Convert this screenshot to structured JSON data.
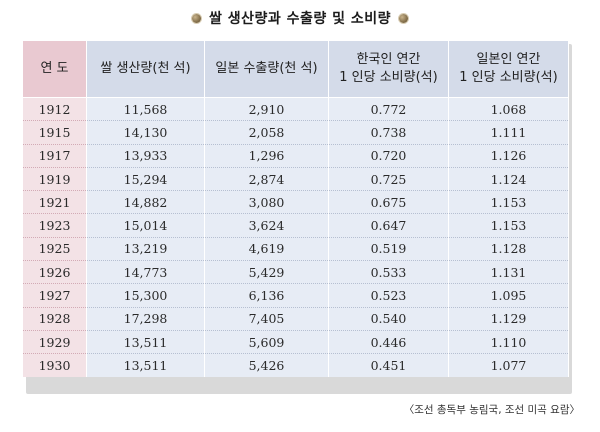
{
  "title": "쌀 생산량과 수출량 및 소비량",
  "headers": {
    "year": "연 도",
    "production": "쌀 생산량(천 석)",
    "export": "일본 수출량(천 석)",
    "korea_line1": "한국인 연간",
    "korea_line2": "1 인당 소비량(석)",
    "japan_line1": "일본인 연간",
    "japan_line2": "1 인당 소비량(석)"
  },
  "rows": [
    {
      "year": "1912",
      "production": "11,568",
      "export": "2,910",
      "korea": "0.772",
      "japan": "1.068"
    },
    {
      "year": "1915",
      "production": "14,130",
      "export": "2,058",
      "korea": "0.738",
      "japan": "1.111"
    },
    {
      "year": "1917",
      "production": "13,933",
      "export": "1,296",
      "korea": "0.720",
      "japan": "1.126"
    },
    {
      "year": "1919",
      "production": "15,294",
      "export": "2,874",
      "korea": "0.725",
      "japan": "1.124"
    },
    {
      "year": "1921",
      "production": "14,882",
      "export": "3,080",
      "korea": "0.675",
      "japan": "1.153"
    },
    {
      "year": "1923",
      "production": "15,014",
      "export": "3,624",
      "korea": "0.647",
      "japan": "1.153"
    },
    {
      "year": "1925",
      "production": "13,219",
      "export": "4,619",
      "korea": "0.519",
      "japan": "1.128"
    },
    {
      "year": "1926",
      "production": "14,773",
      "export": "5,429",
      "korea": "0.533",
      "japan": "1.131"
    },
    {
      "year": "1927",
      "production": "15,300",
      "export": "6,136",
      "korea": "0.523",
      "japan": "1.095"
    },
    {
      "year": "1928",
      "production": "17,298",
      "export": "7,405",
      "korea": "0.540",
      "japan": "1.129"
    },
    {
      "year": "1929",
      "production": "13,511",
      "export": "5,609",
      "korea": "0.446",
      "japan": "1.110"
    },
    {
      "year": "1930",
      "production": "13,511",
      "export": "5,426",
      "korea": "0.451",
      "japan": "1.077"
    }
  ],
  "source": "〈조선 총독부 농림국, 조선 미곡 요람〉",
  "colors": {
    "header_bg": "#d4dbe9",
    "year_header_bg": "#e9c9d1",
    "body_bg": "#e7ecf5",
    "year_col_bg": "#f3e2e6"
  }
}
